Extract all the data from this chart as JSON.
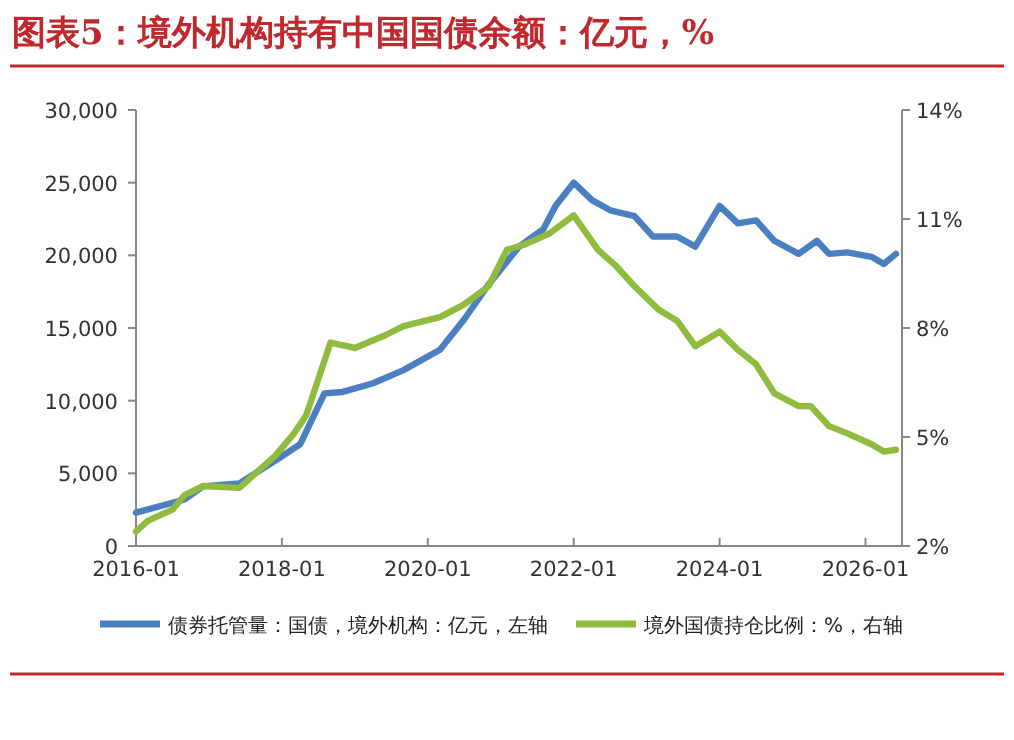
{
  "chart_data": {
    "type": "line",
    "title": "图表5：境外机构持有中国国债余额：亿元，%",
    "series": [
      {
        "name": "债券托管量：国债，境外机构：亿元，左轴",
        "color": "#4a7fc1",
        "axis": "y",
        "x": [
          "2016-01",
          "2016-09",
          "2016-12",
          "2017-06",
          "2017-12",
          "2018-04",
          "2018-08",
          "2018-11",
          "2019-04",
          "2019-09",
          "2020-03",
          "2020-07",
          "2020-11",
          "2021-04",
          "2021-08",
          "2021-10",
          "2022-01",
          "2022-04",
          "2022-07",
          "2022-11",
          "2023-02",
          "2023-06",
          "2023-09",
          "2024-01",
          "2024-04",
          "2024-07",
          "2024-10",
          "2025-02",
          "2025-05",
          "2025-07",
          "2025-10",
          "2026-02",
          "2026-04",
          "2026-06"
        ],
        "values": [
          2300,
          3200,
          4100,
          4300,
          5900,
          7000,
          10500,
          10600,
          11200,
          12100,
          13500,
          15600,
          18000,
          20600,
          21800,
          23400,
          25000,
          23800,
          23100,
          22700,
          21300,
          21300,
          20600,
          23400,
          22200,
          22400,
          21000,
          20100,
          21000,
          20100,
          20200,
          19900,
          19400,
          20100
        ]
      },
      {
        "name": "境外国债持仓比例：%，右轴",
        "color": "#8fbc3e",
        "axis": "y2",
        "x": [
          "2016-01",
          "2016-03",
          "2016-07",
          "2016-09",
          "2016-12",
          "2017-06",
          "2017-12",
          "2018-03",
          "2018-05",
          "2018-09",
          "2019-01",
          "2019-06",
          "2019-09",
          "2020-03",
          "2020-07",
          "2020-11",
          "2021-02",
          "2021-05",
          "2021-09",
          "2022-01",
          "2022-05",
          "2022-08",
          "2022-11",
          "2023-03",
          "2023-06",
          "2023-09",
          "2024-01",
          "2024-04",
          "2024-07",
          "2024-10",
          "2025-02",
          "2025-04",
          "2025-07",
          "2025-10",
          "2026-02",
          "2026-04",
          "2026-06"
        ],
        "values": [
          2.4,
          2.7,
          3.0,
          3.4,
          3.65,
          3.6,
          4.5,
          5.1,
          5.6,
          7.6,
          7.45,
          7.8,
          8.05,
          8.3,
          8.65,
          9.15,
          10.15,
          10.3,
          10.6,
          11.1,
          10.15,
          9.7,
          9.15,
          8.5,
          8.2,
          7.5,
          7.9,
          7.4,
          7.0,
          6.2,
          5.85,
          5.85,
          5.3,
          5.1,
          4.8,
          4.6,
          4.65
        ]
      }
    ],
    "xlim": [
      "2016-01",
      "2026-07"
    ],
    "xticks": [
      "2016-01",
      "2018-01",
      "2020-01",
      "2022-01",
      "2024-01",
      "2026-01"
    ],
    "ylim": [
      0,
      30000
    ],
    "yticks": [
      {
        "value": 0,
        "label": "0"
      },
      {
        "value": 5000,
        "label": "5,000"
      },
      {
        "value": 10000,
        "label": "10,000"
      },
      {
        "value": 15000,
        "label": "15,000"
      },
      {
        "value": 20000,
        "label": "20,000"
      },
      {
        "value": 25000,
        "label": "25,000"
      },
      {
        "value": 30000,
        "label": "30,000"
      }
    ],
    "y2lim": [
      2,
      14
    ],
    "y2ticks": [
      {
        "value": 2,
        "label": "2%"
      },
      {
        "value": 5,
        "label": "5%"
      },
      {
        "value": 8,
        "label": "8%"
      },
      {
        "value": 11,
        "label": "11%"
      },
      {
        "value": 14,
        "label": "14%"
      }
    ],
    "legend": "bottom",
    "grid": false,
    "line_style": "solid"
  }
}
